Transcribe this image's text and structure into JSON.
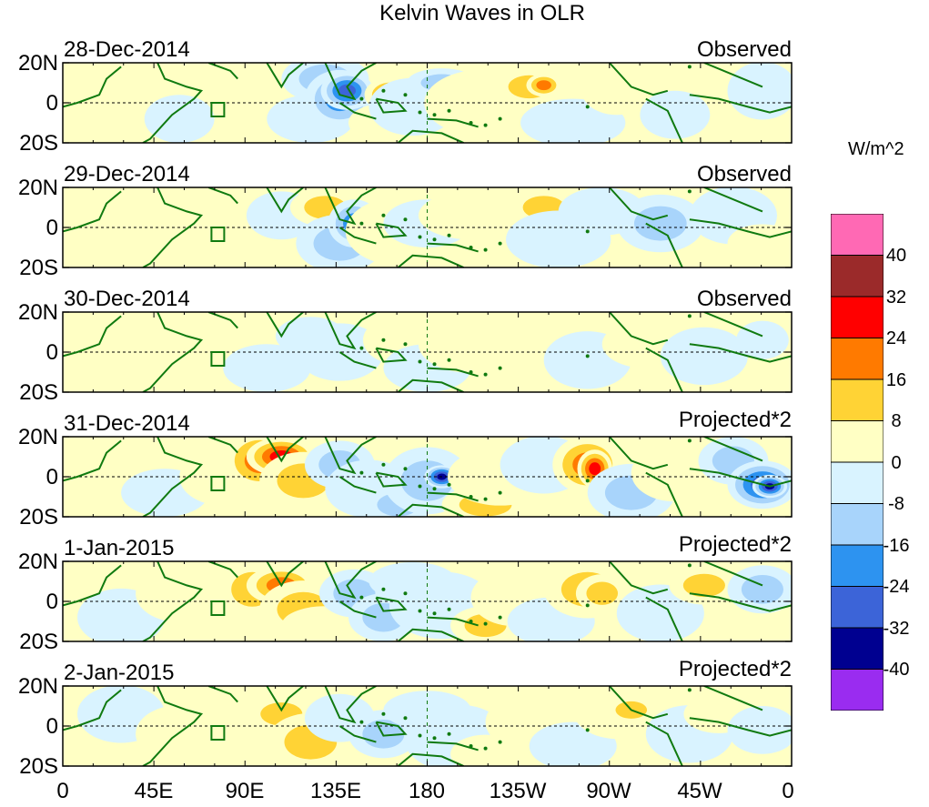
{
  "title": "Kelvin Waves in OLR",
  "units": "W/m^2",
  "panels": [
    {
      "date": "28-Dec-2014",
      "type": "Observed"
    },
    {
      "date": "29-Dec-2014",
      "type": "Observed"
    },
    {
      "date": "30-Dec-2014",
      "type": "Observed"
    },
    {
      "date": "31-Dec-2014",
      "type": "Projected*2"
    },
    {
      "date": "1-Jan-2015",
      "type": "Projected*2"
    },
    {
      "date": "2-Jan-2015",
      "type": "Projected*2"
    }
  ],
  "lat_labels": [
    "20N",
    "0",
    "20S"
  ],
  "lon_labels": [
    "0",
    "45E",
    "90E",
    "135E",
    "180",
    "135W",
    "90W",
    "45W",
    "0"
  ],
  "colorbar": {
    "ticks": [
      "40",
      "32",
      "24",
      "16",
      "8",
      "0",
      "-8",
      "-16",
      "-24",
      "-32",
      "-40"
    ],
    "colors": [
      "#ff69b4",
      "#9b2a2a",
      "#ff0000",
      "#ff7a00",
      "#ffd335",
      "#ffffc4",
      "#d9f3ff",
      "#a8d4fb",
      "#2d93f0",
      "#3c64d8",
      "#000090",
      "#9a2cf0"
    ]
  },
  "colors": {
    "coast": "#107a10",
    "frame": "#000000"
  }
}
